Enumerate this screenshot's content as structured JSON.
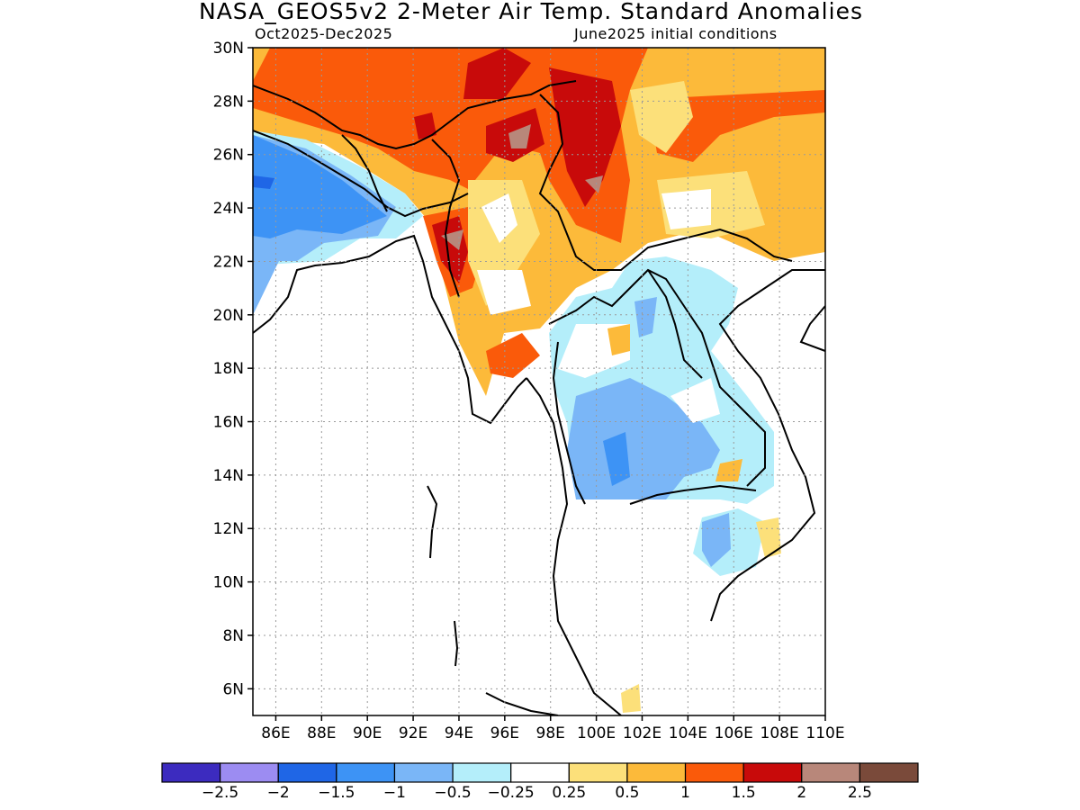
{
  "title": "NASA_GEOS5v2 2-Meter Air Temp. Standard Anomalies",
  "subtitle_left": "Oct2025-Dec2025",
  "subtitle_right": "June2025 initial conditions",
  "map": {
    "lat_range": [
      5,
      30
    ],
    "lon_range": [
      85,
      110
    ],
    "lat_ticks": [
      "30N",
      "28N",
      "26N",
      "24N",
      "22N",
      "20N",
      "18N",
      "16N",
      "14N",
      "12N",
      "10N",
      "8N",
      "6N"
    ],
    "lon_ticks": [
      "86E",
      "88E",
      "90E",
      "92E",
      "94E",
      "96E",
      "98E",
      "100E",
      "102E",
      "104E",
      "106E",
      "108E",
      "110E"
    ],
    "grid": "dotted"
  },
  "colorbar": {
    "colors": [
      "#3c2bbf",
      "#9c8cf2",
      "#1f66e6",
      "#3d93f5",
      "#7ab6f7",
      "#b4eefa",
      "#ffffff",
      "#fce07a",
      "#fcba3a",
      "#fa5a0a",
      "#c80a0a",
      "#b8877a",
      "#7a4a3a"
    ],
    "labels": [
      "-2.5",
      "-2",
      "-1.5",
      "-1",
      "-0.5",
      "-0.25",
      "0.25",
      "0.5",
      "1",
      "1.5",
      "2",
      "2.5"
    ]
  }
}
